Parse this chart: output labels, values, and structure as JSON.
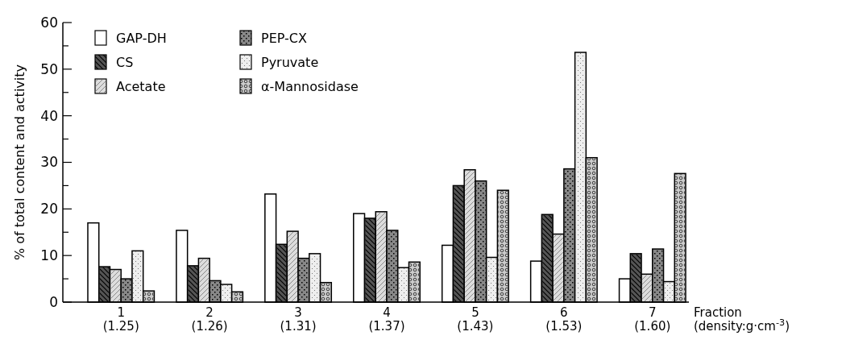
{
  "chart_data": {
    "type": "bar",
    "ylabel": "% of total content and activity",
    "xlabel": "Fraction\n(density:g·cm$^{-3}$)",
    "categories": [
      "1\n(1.25)",
      "2\n(1.26)",
      "3\n(1.31)",
      "4\n(1.37)",
      "5\n(1.43)",
      "6\n(1.53)",
      "7\n(1.60)"
    ],
    "series": [
      {
        "name": "GAP-DH",
        "color": "#ffffff",
        "values": [
          17,
          15.4,
          23.2,
          19,
          12.2,
          8.8,
          5
        ]
      },
      {
        "name": "CS",
        "color": "#555555",
        "values": [
          7.6,
          7.8,
          12.4,
          18,
          25,
          18.8,
          10.4
        ]
      },
      {
        "name": "Acetate",
        "color": "#dddddd",
        "values": [
          7,
          9.4,
          15.2,
          19.4,
          28.4,
          14.6,
          6
        ]
      },
      {
        "name": "PEP-CX",
        "color": "#888888",
        "values": [
          5,
          4.6,
          9.4,
          15.4,
          26,
          28.6,
          11.4
        ]
      },
      {
        "name": "Pyruvate",
        "color": "#eeeeee",
        "values": [
          11,
          3.8,
          10.4,
          7.4,
          9.6,
          53.6,
          4.4
        ]
      },
      {
        "name": "α-Mannosidase",
        "color": "#cccccc",
        "values": [
          2.4,
          2.2,
          4.2,
          8.6,
          24,
          31,
          27.6
        ]
      }
    ],
    "ylim": [
      0,
      60
    ],
    "yticks": [
      0,
      {
        "value": 5,
        "label": null
      },
      10,
      {
        "value": 15,
        "label": null
      },
      20,
      {
        "value": 25,
        "label": null
      },
      30,
      {
        "value": 35,
        "label": null
      },
      40,
      {
        "value": 45,
        "label": null
      },
      50,
      {
        "value": 55,
        "label": null
      },
      60
    ],
    "legend": "top left",
    "grid": false
  }
}
